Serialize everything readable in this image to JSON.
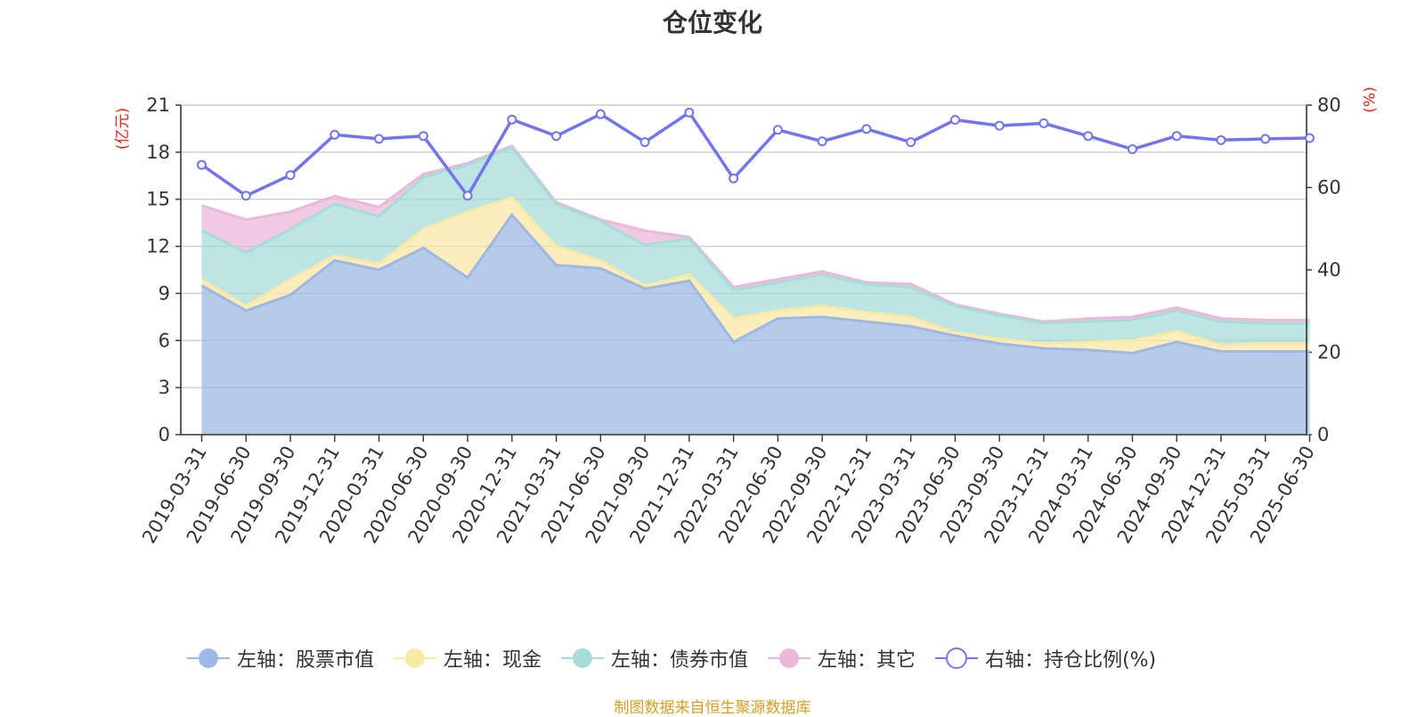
{
  "title": "仓位变化",
  "left_unit": "(亿元)",
  "right_unit": "(%)",
  "footer": "制图数据来自恒生聚源数据库",
  "colors": {
    "stock": "#9db8e2",
    "cash": "#f9e8a6",
    "bond": "#a6dcda",
    "other": "#ebb8dc",
    "ratio": "#7474ee",
    "grid": "#cccccc",
    "axis": "#333333"
  },
  "chart_data": {
    "type": "area",
    "title": "仓位变化",
    "x": [
      "2019-03-31",
      "2019-06-30",
      "2019-09-30",
      "2019-12-31",
      "2020-03-31",
      "2020-06-30",
      "2020-09-30",
      "2020-12-31",
      "2021-03-31",
      "2021-06-30",
      "2021-09-30",
      "2021-12-31",
      "2022-03-31",
      "2022-06-30",
      "2022-09-30",
      "2022-12-31",
      "2023-03-31",
      "2023-06-30",
      "2023-09-30",
      "2023-12-31",
      "2024-03-31",
      "2024-06-30",
      "2024-09-30",
      "2024-12-31",
      "2025-03-31",
      "2025-06-30"
    ],
    "y_left": {
      "label": "(亿元)",
      "ticks": [
        0,
        3,
        6,
        9,
        12,
        15,
        18,
        21
      ],
      "range": [
        0,
        21
      ]
    },
    "y_right": {
      "label": "(%)",
      "ticks": [
        0,
        20,
        40,
        60,
        80
      ],
      "range": [
        0,
        80
      ]
    },
    "stacked": true,
    "series": [
      {
        "name": "左轴：股票市值",
        "axis": "left",
        "type": "area",
        "values": [
          9.5,
          7.9,
          8.9,
          11.1,
          10.5,
          11.9,
          10.0,
          14.0,
          10.8,
          10.6,
          9.3,
          9.8,
          5.9,
          7.4,
          7.5,
          7.2,
          6.9,
          6.3,
          5.8,
          5.5,
          5.4,
          5.2,
          5.9,
          5.3,
          5.3,
          5.3
        ]
      },
      {
        "name": "左轴：现金",
        "axis": "left",
        "type": "area",
        "values": [
          0.4,
          0.3,
          1.0,
          0.3,
          0.4,
          1.2,
          4.2,
          1.1,
          1.2,
          0.5,
          0.2,
          0.4,
          1.5,
          0.5,
          0.7,
          0.6,
          0.6,
          0.2,
          0.3,
          0.3,
          0.5,
          0.8,
          0.7,
          0.4,
          0.5,
          0.5
        ]
      },
      {
        "name": "左轴：债券市值",
        "axis": "left",
        "type": "area",
        "values": [
          3.1,
          3.4,
          3.2,
          3.3,
          3.0,
          3.3,
          3.0,
          3.2,
          2.7,
          2.5,
          2.6,
          2.3,
          1.8,
          1.8,
          2.0,
          1.8,
          1.9,
          1.7,
          1.5,
          1.3,
          1.3,
          1.3,
          1.3,
          1.5,
          1.3,
          1.3
        ]
      },
      {
        "name": "左轴：其它",
        "axis": "left",
        "type": "area",
        "values": [
          1.6,
          2.1,
          1.1,
          0.5,
          0.6,
          0.2,
          0.1,
          0.1,
          0.1,
          0.1,
          0.9,
          0.1,
          0.2,
          0.2,
          0.2,
          0.1,
          0.2,
          0.1,
          0.1,
          0.1,
          0.2,
          0.2,
          0.2,
          0.2,
          0.2,
          0.2
        ]
      },
      {
        "name": "右轴：持仓比例(%)",
        "axis": "right",
        "type": "line",
        "values": [
          65.5,
          58,
          63,
          72.8,
          71.8,
          72.5,
          58,
          76.5,
          72.5,
          77.8,
          71,
          78.2,
          62.2,
          74,
          71.2,
          74.2,
          71,
          76.4,
          75,
          75.6,
          72.5,
          69.3,
          72.5,
          71.5,
          71.8,
          72
        ]
      }
    ],
    "legend_position": "bottom",
    "grid": true
  }
}
